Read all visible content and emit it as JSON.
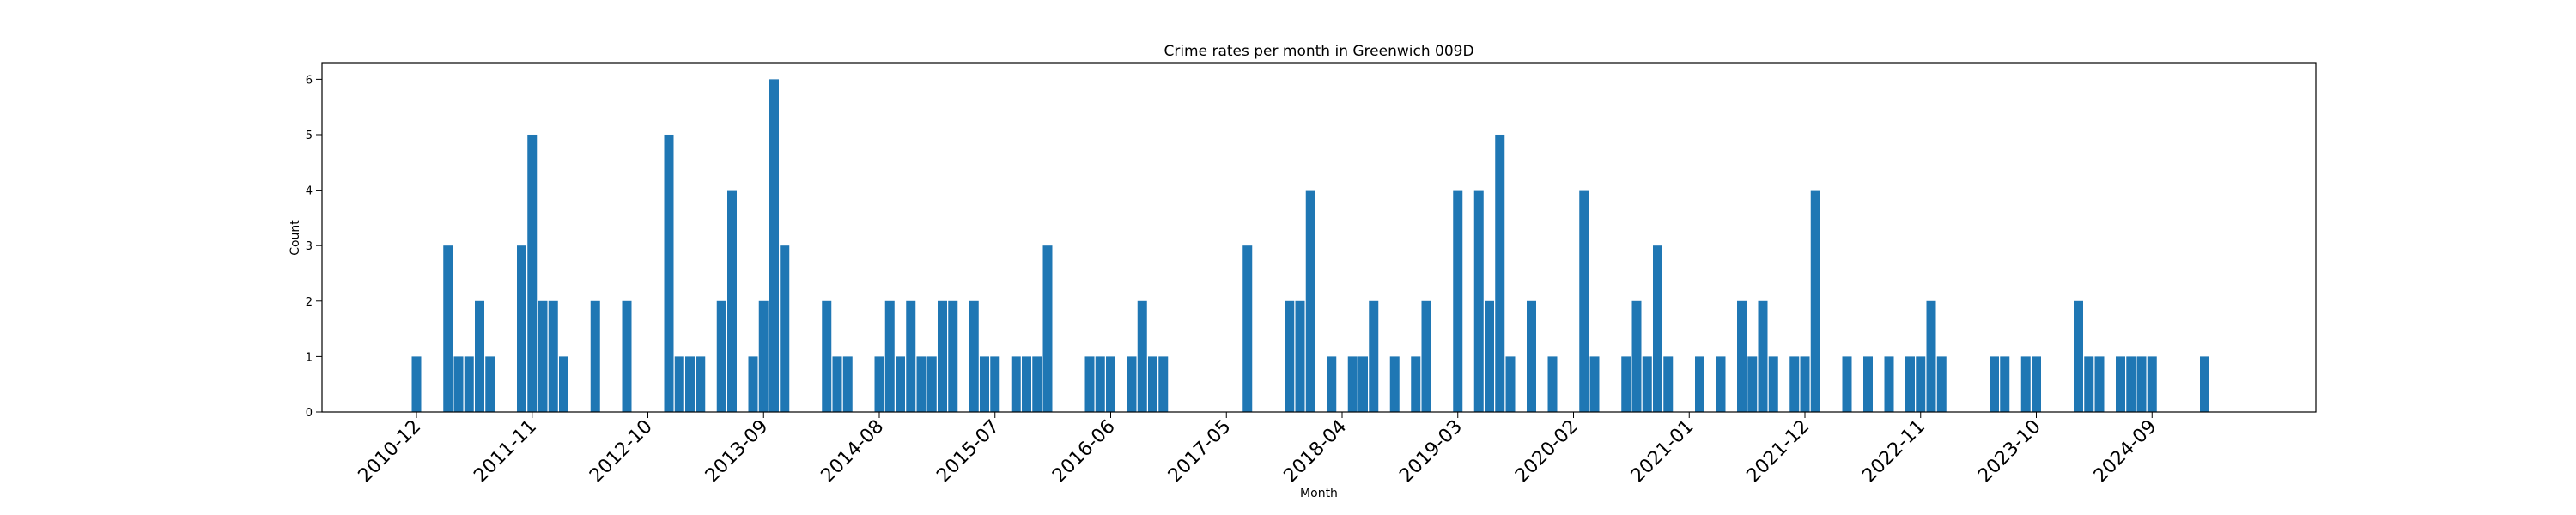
{
  "chart_data": {
    "type": "bar",
    "title": "Crime rates per month in Greenwich 009D",
    "xlabel": "Month",
    "ylabel": "Count",
    "ylim": [
      0,
      6.3
    ],
    "yticks": [
      "0",
      "1",
      "2",
      "3",
      "4",
      "5",
      "6"
    ],
    "xtick_labels": [
      "2010-12",
      "2011-11",
      "2012-10",
      "2013-09",
      "2014-08",
      "2015-07",
      "2016-06",
      "2017-05",
      "2018-04",
      "2019-03",
      "2020-02",
      "2021-01",
      "2021-12",
      "2022-11",
      "2023-10",
      "2024-09"
    ],
    "grid": false,
    "color": "#1f77b4",
    "x": [
      "2010-12",
      "2011-03",
      "2011-04",
      "2011-05",
      "2011-06",
      "2011-07",
      "2011-10",
      "2011-11",
      "2011-12",
      "2012-01",
      "2012-02",
      "2012-05",
      "2012-08",
      "2012-12",
      "2013-01",
      "2013-02",
      "2013-03",
      "2013-05",
      "2013-06",
      "2013-08",
      "2013-09",
      "2013-10",
      "2013-11",
      "2014-03",
      "2014-04",
      "2014-05",
      "2014-08",
      "2014-09",
      "2014-10",
      "2014-11",
      "2014-12",
      "2015-01",
      "2015-02",
      "2015-03",
      "2015-05",
      "2015-06",
      "2015-07",
      "2015-09",
      "2015-10",
      "2015-11",
      "2015-12",
      "2016-04",
      "2016-05",
      "2016-06",
      "2016-08",
      "2016-09",
      "2016-10",
      "2016-11",
      "2017-07",
      "2017-11",
      "2017-12",
      "2018-01",
      "2018-03",
      "2018-05",
      "2018-06",
      "2018-07",
      "2018-09",
      "2018-11",
      "2018-12",
      "2019-03",
      "2019-05",
      "2019-06",
      "2019-07",
      "2019-08",
      "2019-10",
      "2019-12",
      "2020-03",
      "2020-04",
      "2020-07",
      "2020-08",
      "2020-09",
      "2020-10",
      "2020-11",
      "2021-02",
      "2021-04",
      "2021-06",
      "2021-07",
      "2021-08",
      "2021-09",
      "2021-11",
      "2021-12",
      "2022-01",
      "2022-04",
      "2022-06",
      "2022-08",
      "2022-10",
      "2022-11",
      "2022-12",
      "2023-01",
      "2023-06",
      "2023-07",
      "2023-09",
      "2023-10",
      "2024-02",
      "2024-03",
      "2024-04",
      "2024-06",
      "2024-07",
      "2024-08",
      "2024-09",
      "2025-02"
    ],
    "values": [
      1,
      3,
      1,
      1,
      2,
      1,
      3,
      5,
      2,
      2,
      1,
      2,
      2,
      5,
      1,
      1,
      1,
      2,
      4,
      1,
      2,
      6,
      3,
      2,
      1,
      1,
      1,
      2,
      1,
      2,
      1,
      1,
      2,
      2,
      2,
      1,
      1,
      1,
      1,
      1,
      3,
      1,
      1,
      1,
      1,
      2,
      1,
      1,
      3,
      2,
      2,
      4,
      1,
      1,
      1,
      2,
      1,
      1,
      2,
      4,
      4,
      2,
      5,
      1,
      2,
      1,
      4,
      1,
      1,
      2,
      1,
      3,
      1,
      1,
      1,
      2,
      1,
      2,
      1,
      1,
      1,
      4,
      1,
      1,
      1,
      1,
      1,
      2,
      1,
      1,
      1,
      1,
      1,
      2,
      1,
      1,
      1,
      1,
      1,
      1,
      1
    ]
  }
}
